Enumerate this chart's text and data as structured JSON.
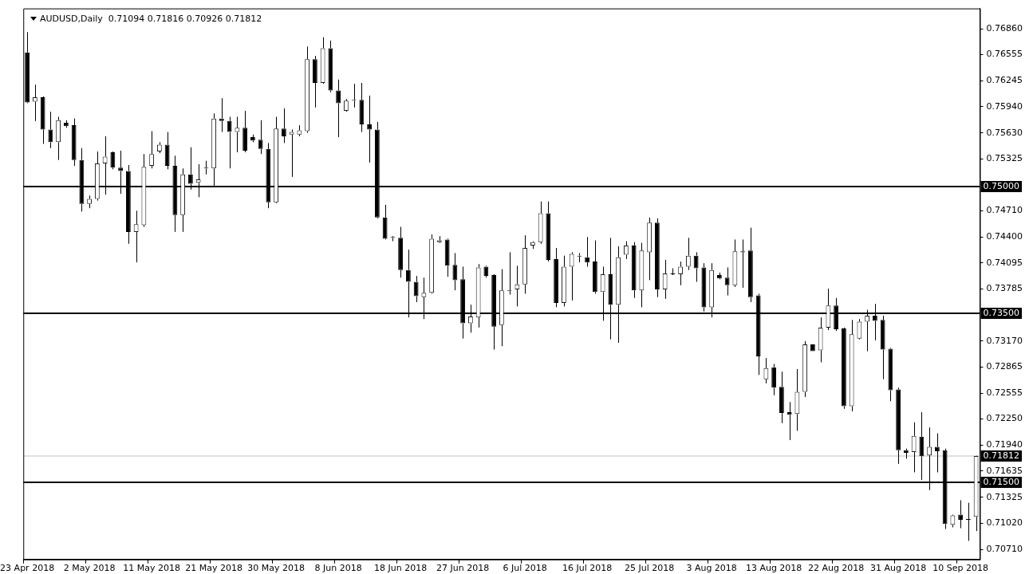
{
  "chart_data": {
    "type": "candlestick",
    "title": "AUDUSD,Daily  0.71094 0.71816 0.70926 0.71812",
    "categories": [
      "23 Apr 2018",
      null,
      null,
      null,
      null,
      null,
      null,
      null,
      "2 May 2018",
      null,
      null,
      null,
      null,
      null,
      null,
      null,
      "11 May 2018",
      null,
      null,
      null,
      null,
      null,
      null,
      null,
      "21 May 2018",
      null,
      null,
      null,
      null,
      null,
      null,
      null,
      "30 May 2018",
      null,
      null,
      null,
      null,
      null,
      null,
      null,
      "8 Jun 2018",
      null,
      null,
      null,
      null,
      null,
      null,
      null,
      "18 Jun 2018",
      null,
      null,
      null,
      null,
      null,
      null,
      null,
      "27 Jun 2018",
      null,
      null,
      null,
      null,
      null,
      null,
      null,
      "6 Jul 2018",
      null,
      null,
      null,
      null,
      null,
      null,
      null,
      "16 Jul 2018",
      null,
      null,
      null,
      null,
      null,
      null,
      null,
      "25 Jul 2018",
      null,
      null,
      null,
      null,
      null,
      null,
      null,
      "3 Aug 2018",
      null,
      null,
      null,
      null,
      null,
      null,
      null,
      "13 Aug 2018",
      null,
      null,
      null,
      null,
      null,
      null,
      null,
      "22 Aug 2018",
      null,
      null,
      null,
      null,
      null,
      null,
      null,
      "31 Aug 2018",
      null,
      null,
      null,
      null,
      null,
      null,
      null,
      "10 Sep 2018",
      null,
      null
    ],
    "ohlc": [
      [
        0.7658,
        0.7682,
        0.7598,
        0.7599
      ],
      [
        0.76,
        0.762,
        0.7577,
        0.7605
      ],
      [
        0.7605,
        0.7606,
        0.755,
        0.7567
      ],
      [
        0.7567,
        0.7588,
        0.7545,
        0.7552
      ],
      [
        0.7552,
        0.7582,
        0.7531,
        0.7578
      ],
      [
        0.7575,
        0.7578,
        0.7569,
        0.7571
      ],
      [
        0.7572,
        0.758,
        0.7524,
        0.7531
      ],
      [
        0.7531,
        0.7545,
        0.747,
        0.7479
      ],
      [
        0.7479,
        0.7489,
        0.7474,
        0.7485
      ],
      [
        0.7485,
        0.7541,
        0.7483,
        0.7527
      ],
      [
        0.7527,
        0.7559,
        0.749,
        0.7535
      ],
      [
        0.754,
        0.7541,
        0.752,
        0.7522
      ],
      [
        0.7522,
        0.7542,
        0.7491,
        0.7518
      ],
      [
        0.7518,
        0.7525,
        0.7432,
        0.7446
      ],
      [
        0.7446,
        0.7471,
        0.741,
        0.7455
      ],
      [
        0.7454,
        0.7538,
        0.7452,
        0.7523
      ],
      [
        0.7524,
        0.7565,
        0.7521,
        0.7538
      ],
      [
        0.7541,
        0.7552,
        0.7539,
        0.7549
      ],
      [
        0.7549,
        0.7564,
        0.752,
        0.7524
      ],
      [
        0.7524,
        0.7536,
        0.7446,
        0.7466
      ],
      [
        0.7466,
        0.7521,
        0.7446,
        0.7514
      ],
      [
        0.7514,
        0.7546,
        0.7496,
        0.7503
      ],
      [
        0.7504,
        0.7526,
        0.7487,
        0.7508
      ],
      [
        0.7522,
        0.753,
        0.7514,
        0.7521
      ],
      [
        0.7521,
        0.7586,
        0.75,
        0.758
      ],
      [
        0.758,
        0.7604,
        0.7564,
        0.7577
      ],
      [
        0.7577,
        0.7582,
        0.7521,
        0.7564
      ],
      [
        0.7564,
        0.7582,
        0.754,
        0.7569
      ],
      [
        0.7569,
        0.7589,
        0.754,
        0.7542
      ],
      [
        0.7558,
        0.7561,
        0.7552,
        0.7554
      ],
      [
        0.7555,
        0.7578,
        0.7538,
        0.7544
      ],
      [
        0.7544,
        0.7551,
        0.7474,
        0.7481
      ],
      [
        0.7481,
        0.7582,
        0.748,
        0.7568
      ],
      [
        0.7568,
        0.7592,
        0.7551,
        0.7559
      ],
      [
        0.7561,
        0.7567,
        0.7511,
        0.7564
      ],
      [
        0.7561,
        0.7572,
        0.7559,
        0.7566
      ],
      [
        0.7565,
        0.7665,
        0.7563,
        0.765
      ],
      [
        0.765,
        0.7654,
        0.7593,
        0.7622
      ],
      [
        0.7622,
        0.7676,
        0.7621,
        0.7663
      ],
      [
        0.7663,
        0.7672,
        0.7611,
        0.7613
      ],
      [
        0.7613,
        0.7626,
        0.7558,
        0.7598
      ],
      [
        0.7589,
        0.7603,
        0.7588,
        0.7601
      ],
      [
        0.7601,
        0.7621,
        0.7593,
        0.7602
      ],
      [
        0.7602,
        0.7622,
        0.7564,
        0.7573
      ],
      [
        0.7573,
        0.7607,
        0.7528,
        0.7567
      ],
      [
        0.7567,
        0.7576,
        0.7462,
        0.7463
      ],
      [
        0.7463,
        0.7478,
        0.7437,
        0.7438
      ],
      [
        0.744,
        0.7441,
        0.7435,
        0.7439
      ],
      [
        0.7439,
        0.7452,
        0.7392,
        0.7401
      ],
      [
        0.7401,
        0.7425,
        0.7345,
        0.7387
      ],
      [
        0.7387,
        0.7394,
        0.7363,
        0.737
      ],
      [
        0.7369,
        0.7392,
        0.7343,
        0.7374
      ],
      [
        0.7374,
        0.7443,
        0.7373,
        0.7438
      ],
      [
        0.7434,
        0.7441,
        0.7433,
        0.7436
      ],
      [
        0.7437,
        0.7438,
        0.7393,
        0.7406
      ],
      [
        0.7407,
        0.7421,
        0.7377,
        0.7389
      ],
      [
        0.739,
        0.7405,
        0.732,
        0.7338
      ],
      [
        0.7338,
        0.736,
        0.7327,
        0.7346
      ],
      [
        0.7345,
        0.7408,
        0.7333,
        0.7404
      ],
      [
        0.7405,
        0.7406,
        0.7392,
        0.7394
      ],
      [
        0.7395,
        0.7396,
        0.7307,
        0.7334
      ],
      [
        0.7336,
        0.7402,
        0.7311,
        0.7377
      ],
      [
        0.7377,
        0.7422,
        0.7372,
        0.7376
      ],
      [
        0.7378,
        0.7406,
        0.7358,
        0.7384
      ],
      [
        0.7384,
        0.7442,
        0.7373,
        0.7427
      ],
      [
        0.743,
        0.7435,
        0.7426,
        0.7434
      ],
      [
        0.7434,
        0.7482,
        0.7432,
        0.7468
      ],
      [
        0.7468,
        0.7482,
        0.7411,
        0.7413
      ],
      [
        0.7414,
        0.7427,
        0.7357,
        0.7362
      ],
      [
        0.7362,
        0.7418,
        0.7358,
        0.7405
      ],
      [
        0.7405,
        0.7422,
        0.7365,
        0.742
      ],
      [
        0.7418,
        0.7421,
        0.741,
        0.7417
      ],
      [
        0.7416,
        0.744,
        0.7405,
        0.741
      ],
      [
        0.7411,
        0.7436,
        0.7373,
        0.7375
      ],
      [
        0.7375,
        0.7405,
        0.7341,
        0.7396
      ],
      [
        0.7396,
        0.7439,
        0.7319,
        0.736
      ],
      [
        0.736,
        0.7429,
        0.7315,
        0.7416
      ],
      [
        0.7419,
        0.7435,
        0.7414,
        0.743
      ],
      [
        0.743,
        0.7434,
        0.7368,
        0.7377
      ],
      [
        0.7377,
        0.7433,
        0.7357,
        0.7424
      ],
      [
        0.7422,
        0.7463,
        0.7389,
        0.7457
      ],
      [
        0.7457,
        0.7462,
        0.7369,
        0.7378
      ],
      [
        0.7378,
        0.7413,
        0.7367,
        0.7397
      ],
      [
        0.7397,
        0.7403,
        0.7395,
        0.7396
      ],
      [
        0.7396,
        0.7411,
        0.7383,
        0.7405
      ],
      [
        0.7405,
        0.7439,
        0.7401,
        0.7418
      ],
      [
        0.7418,
        0.7422,
        0.7387,
        0.7403
      ],
      [
        0.7404,
        0.7409,
        0.7352,
        0.7357
      ],
      [
        0.7357,
        0.7409,
        0.7345,
        0.7401
      ],
      [
        0.7395,
        0.7398,
        0.739,
        0.7391
      ],
      [
        0.7392,
        0.7404,
        0.7371,
        0.7383
      ],
      [
        0.7383,
        0.7437,
        0.7381,
        0.7423
      ],
      [
        0.7423,
        0.7437,
        0.738,
        0.7422
      ],
      [
        0.7424,
        0.7451,
        0.7363,
        0.7369
      ],
      [
        0.7371,
        0.7373,
        0.7277,
        0.7299
      ],
      [
        0.7272,
        0.7297,
        0.7267,
        0.7285
      ],
      [
        0.7286,
        0.729,
        0.7253,
        0.7262
      ],
      [
        0.7263,
        0.7281,
        0.722,
        0.7232
      ],
      [
        0.7233,
        0.7245,
        0.72,
        0.723
      ],
      [
        0.7231,
        0.7284,
        0.7211,
        0.7257
      ],
      [
        0.7257,
        0.7317,
        0.7251,
        0.7313
      ],
      [
        0.7313,
        0.7313,
        0.7305,
        0.7305
      ],
      [
        0.7306,
        0.7345,
        0.7292,
        0.7333
      ],
      [
        0.7333,
        0.7379,
        0.733,
        0.7359
      ],
      [
        0.7359,
        0.7368,
        0.7329,
        0.7331
      ],
      [
        0.7332,
        0.7333,
        0.7237,
        0.724
      ],
      [
        0.724,
        0.7342,
        0.7234,
        0.7325
      ],
      [
        0.732,
        0.7343,
        0.7319,
        0.734
      ],
      [
        0.734,
        0.7354,
        0.7305,
        0.7347
      ],
      [
        0.7347,
        0.7361,
        0.7318,
        0.7341
      ],
      [
        0.7342,
        0.7347,
        0.7272,
        0.7307
      ],
      [
        0.7308,
        0.7309,
        0.7246,
        0.7259
      ],
      [
        0.726,
        0.7262,
        0.7172,
        0.7188
      ],
      [
        0.7188,
        0.719,
        0.7178,
        0.7185
      ],
      [
        0.7186,
        0.7221,
        0.7162,
        0.7205
      ],
      [
        0.7204,
        0.7233,
        0.7153,
        0.7181
      ],
      [
        0.7182,
        0.7215,
        0.7141,
        0.7192
      ],
      [
        0.7192,
        0.7208,
        0.7162,
        0.7187
      ],
      [
        0.7188,
        0.719,
        0.7095,
        0.7101
      ],
      [
        0.71,
        0.7112,
        0.7097,
        0.7111
      ],
      [
        0.7112,
        0.7129,
        0.7096,
        0.7106
      ],
      [
        0.7107,
        0.7126,
        0.7081,
        0.7106
      ],
      [
        0.71094,
        0.71816,
        0.70926,
        0.71812
      ]
    ],
    "ylim": [
      0.7059,
      0.771
    ],
    "yticks": [
      {
        "value": 0.7686,
        "label": "0.76860"
      },
      0.76555,
      0.76245,
      {
        "value": 0.7594,
        "label": "0.75940"
      },
      {
        "value": 0.7563,
        "label": "0.75630"
      },
      0.75325,
      {
        "value": 0.7471,
        "label": "0.74710"
      },
      {
        "value": 0.744,
        "label": "0.74400"
      },
      0.74095,
      0.73785,
      {
        "value": 0.7317,
        "label": "0.73170"
      },
      0.72865,
      0.72555,
      {
        "value": 0.7225,
        "label": "0.72250"
      },
      {
        "value": 0.7194,
        "label": "0.71940"
      },
      0.71635,
      0.71325,
      {
        "value": 0.7102,
        "label": "0.71020"
      },
      {
        "value": 0.7071,
        "label": "0.70710"
      }
    ],
    "ref_lines": [
      {
        "axis": "y",
        "value": 0.75,
        "label": "0.75000",
        "color": "#000000"
      },
      {
        "axis": "y",
        "value": 0.735,
        "label": "0.73500",
        "color": "#000000"
      },
      {
        "axis": "y",
        "value": 0.715,
        "label": "0.71500",
        "color": "#000000"
      },
      {
        "axis": "y",
        "value": 0.71812,
        "label": "0.71812",
        "color": "#c0c0c0"
      }
    ],
    "grid": false,
    "legend": false
  }
}
